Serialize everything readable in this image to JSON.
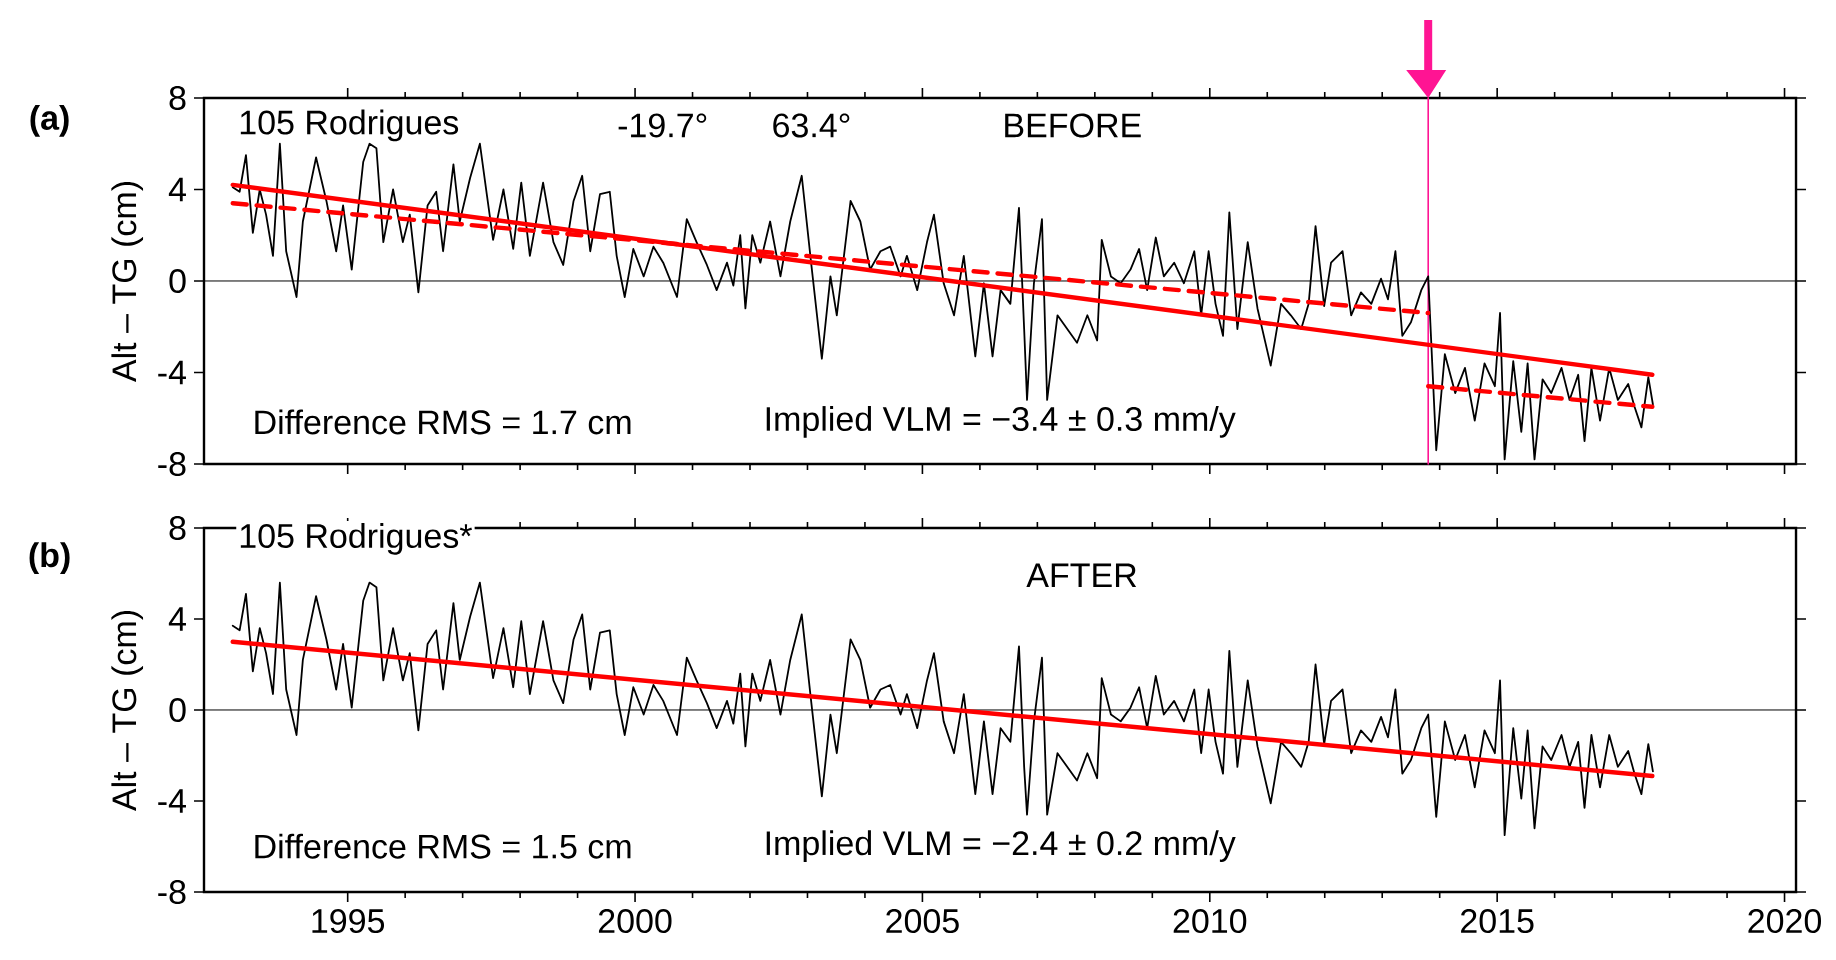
{
  "chart_data": [
    {
      "type": "line",
      "title": "(a)",
      "ylabel": "Alt – TG (cm)",
      "annotations": [
        "105 Rodrigues",
        "-19.7°",
        "63.4°",
        "BEFORE",
        "Difference RMS =  1.7 cm",
        "Implied VLM = −3.4 ± 0.3 mm/y"
      ],
      "x": [
        1993.0,
        1993.12,
        1993.23,
        1993.35,
        1993.47,
        1993.58,
        1993.7,
        1993.82,
        1993.93,
        1994.11,
        1994.22,
        1994.45,
        1994.63,
        1994.8,
        1994.92,
        1995.07,
        1995.27,
        1995.38,
        1995.5,
        1995.62,
        1995.79,
        1995.96,
        1996.08,
        1996.23,
        1996.39,
        1996.54,
        1996.66,
        1996.84,
        1996.95,
        1997.13,
        1997.3,
        1997.42,
        1997.53,
        1997.71,
        1997.88,
        1998.02,
        1998.17,
        1998.4,
        1998.58,
        1998.75,
        1998.93,
        1999.08,
        1999.22,
        1999.39,
        1999.56,
        1999.68,
        1999.82,
        1999.97,
        2000.15,
        2000.32,
        2000.49,
        2000.73,
        2000.9,
        2001.07,
        2001.25,
        2001.42,
        2001.6,
        2001.71,
        2001.83,
        2001.92,
        2002.04,
        2002.18,
        2002.35,
        2002.53,
        2002.7,
        2002.9,
        2003.05,
        2003.25,
        2003.4,
        2003.51,
        2003.75,
        2003.92,
        2004.09,
        2004.27,
        2004.44,
        2004.62,
        2004.73,
        2004.91,
        2005.08,
        2005.2,
        2005.37,
        2005.55,
        2005.72,
        2005.92,
        2006.07,
        2006.22,
        2006.36,
        2006.53,
        2006.68,
        2006.77,
        2006.82,
        2006.94,
        2007.08,
        2007.17,
        2007.35,
        2007.52,
        2007.69,
        2007.87,
        2008.04,
        2008.12,
        2008.28,
        2008.45,
        2008.62,
        2008.77,
        2008.91,
        2009.06,
        2009.2,
        2009.38,
        2009.55,
        2009.73,
        2009.85,
        2009.98,
        2010.1,
        2010.23,
        2010.34,
        2010.48,
        2010.66,
        2010.83,
        2011.06,
        2011.24,
        2011.41,
        2011.59,
        2011.72,
        2011.84,
        2011.99,
        2012.11,
        2012.31,
        2012.46,
        2012.63,
        2012.81,
        2012.98,
        2013.1,
        2013.23,
        2013.35,
        2013.5,
        2013.68,
        2013.8,
        2013.94,
        2014.09,
        2014.27,
        2014.44,
        2014.61,
        2014.78,
        2014.96,
        2015.05,
        2015.13,
        2015.28,
        2015.42,
        2015.53,
        2015.65,
        2015.79,
        2015.94,
        2016.12,
        2016.26,
        2016.41,
        2016.52,
        2016.64,
        2016.79,
        2016.95,
        2017.1,
        2017.28,
        2017.39,
        2017.51,
        2017.63,
        2017.71
      ],
      "series": [
        {
          "color": "#000000",
          "line_style": "solid",
          "values": [
            4.1,
            3.9,
            5.5,
            2.1,
            4.0,
            2.9,
            1.1,
            6.0,
            1.3,
            -0.7,
            2.6,
            5.4,
            3.5,
            1.3,
            3.3,
            0.5,
            5.2,
            6.0,
            5.8,
            1.7,
            4.0,
            1.7,
            2.9,
            -0.5,
            3.3,
            3.9,
            1.3,
            5.1,
            2.6,
            4.5,
            6.0,
            3.8,
            1.8,
            4.0,
            1.4,
            4.3,
            1.1,
            4.3,
            1.7,
            0.7,
            3.5,
            4.6,
            1.3,
            3.8,
            3.9,
            1.1,
            -0.7,
            1.4,
            0.2,
            1.5,
            0.8,
            -0.7,
            2.7,
            1.7,
            0.7,
            -0.4,
            0.8,
            -0.2,
            2.0,
            -1.2,
            2.0,
            0.8,
            2.6,
            0.2,
            2.6,
            4.6,
            1.1,
            -3.4,
            0.2,
            -1.5,
            3.5,
            2.6,
            0.5,
            1.3,
            1.5,
            0.2,
            1.1,
            -0.4,
            1.7,
            2.9,
            -0.1,
            -1.5,
            1.1,
            -3.3,
            -0.1,
            -3.3,
            -0.4,
            -1.0,
            3.2,
            -2.1,
            -5.2,
            -0.1,
            2.7,
            -5.2,
            -1.5,
            -2.1,
            -2.7,
            -1.5,
            -2.6,
            1.8,
            0.2,
            -0.1,
            0.5,
            1.4,
            -0.4,
            1.9,
            0.2,
            0.8,
            -0.1,
            1.3,
            -1.5,
            1.3,
            -1.0,
            -2.4,
            3.0,
            -2.1,
            1.7,
            -1.2,
            -3.7,
            -1.0,
            -1.5,
            -2.1,
            -1.0,
            2.4,
            -1.1,
            0.8,
            1.3,
            -1.5,
            -0.5,
            -1.0,
            0.1,
            -0.8,
            1.3,
            -2.4,
            -1.8,
            -0.4,
            0.2,
            -7.4,
            -3.2,
            -4.9,
            -3.8,
            -6.1,
            -3.6,
            -4.6,
            -1.4,
            -7.8,
            -3.5,
            -6.6,
            -3.6,
            -7.8,
            -4.3,
            -4.9,
            -3.8,
            -5.2,
            -4.1,
            -7.0,
            -3.8,
            -6.1,
            -3.8,
            -5.2,
            -4.5,
            -5.5,
            -6.4,
            -4.2,
            -5.4
          ]
        },
        {
          "color": "#ff0000",
          "line_style": "solid",
          "x": [
            1993.0,
            2017.7
          ],
          "values": [
            4.2,
            -4.1
          ]
        },
        {
          "color": "#ff0000",
          "line_style": "dashed",
          "x": [
            1993.0,
            2013.8
          ],
          "values": [
            3.4,
            -1.4
          ]
        },
        {
          "color": "#ff0000",
          "line_style": "dashed",
          "x": [
            2013.8,
            2017.7
          ],
          "values": [
            -4.6,
            -5.5
          ]
        }
      ],
      "xlim": [
        1992.5,
        2020.2
      ],
      "ylim": [
        -8,
        8
      ],
      "xticks": [
        1995,
        2000,
        2005,
        2010,
        2015,
        2020
      ],
      "yticks": [
        -8,
        -4,
        0,
        4,
        8
      ],
      "tick_labels": "y",
      "ref_lines": [
        {
          "axis": "y",
          "value": 0,
          "color": "#000000"
        },
        {
          "axis": "x",
          "value": 2013.8,
          "color": "#ff1493"
        }
      ]
    },
    {
      "type": "line",
      "title": "(b)",
      "ylabel": "Alt – TG (cm)",
      "annotations": [
        "105 Rodrigues*",
        "AFTER",
        "Difference RMS =  1.5 cm",
        "Implied VLM = −2.4 ± 0.2 mm/y"
      ],
      "x": [
        1993.0,
        1993.12,
        1993.23,
        1993.35,
        1993.47,
        1993.58,
        1993.7,
        1993.82,
        1993.93,
        1994.11,
        1994.22,
        1994.45,
        1994.63,
        1994.8,
        1994.92,
        1995.07,
        1995.27,
        1995.38,
        1995.5,
        1995.62,
        1995.79,
        1995.96,
        1996.08,
        1996.23,
        1996.39,
        1996.54,
        1996.66,
        1996.84,
        1996.95,
        1997.13,
        1997.3,
        1997.42,
        1997.53,
        1997.71,
        1997.88,
        1998.02,
        1998.17,
        1998.4,
        1998.58,
        1998.75,
        1998.93,
        1999.08,
        1999.22,
        1999.39,
        1999.56,
        1999.68,
        1999.82,
        1999.97,
        2000.15,
        2000.32,
        2000.49,
        2000.73,
        2000.9,
        2001.07,
        2001.25,
        2001.42,
        2001.6,
        2001.71,
        2001.83,
        2001.92,
        2002.04,
        2002.18,
        2002.35,
        2002.53,
        2002.7,
        2002.9,
        2003.05,
        2003.25,
        2003.4,
        2003.51,
        2003.75,
        2003.92,
        2004.09,
        2004.27,
        2004.44,
        2004.62,
        2004.73,
        2004.91,
        2005.08,
        2005.2,
        2005.37,
        2005.55,
        2005.72,
        2005.92,
        2006.07,
        2006.22,
        2006.36,
        2006.53,
        2006.68,
        2006.77,
        2006.82,
        2006.94,
        2007.08,
        2007.17,
        2007.35,
        2007.52,
        2007.69,
        2007.87,
        2008.04,
        2008.12,
        2008.28,
        2008.45,
        2008.62,
        2008.77,
        2008.91,
        2009.06,
        2009.2,
        2009.38,
        2009.55,
        2009.73,
        2009.85,
        2009.98,
        2010.1,
        2010.23,
        2010.34,
        2010.48,
        2010.66,
        2010.83,
        2011.06,
        2011.24,
        2011.41,
        2011.59,
        2011.72,
        2011.84,
        2011.99,
        2012.11,
        2012.31,
        2012.46,
        2012.63,
        2012.81,
        2012.98,
        2013.1,
        2013.23,
        2013.35,
        2013.5,
        2013.68,
        2013.8,
        2013.94,
        2014.09,
        2014.27,
        2014.44,
        2014.61,
        2014.78,
        2014.96,
        2015.05,
        2015.13,
        2015.28,
        2015.42,
        2015.53,
        2015.65,
        2015.79,
        2015.94,
        2016.12,
        2016.26,
        2016.41,
        2016.52,
        2016.64,
        2016.79,
        2016.95,
        2017.1,
        2017.28,
        2017.39,
        2017.51,
        2017.63,
        2017.71
      ],
      "series": [
        {
          "color": "#000000",
          "line_style": "solid",
          "values": [
            3.7,
            3.5,
            5.1,
            1.7,
            3.6,
            2.5,
            0.7,
            5.6,
            0.9,
            -1.1,
            2.2,
            5.0,
            3.1,
            0.9,
            2.9,
            0.1,
            4.8,
            5.6,
            5.4,
            1.3,
            3.6,
            1.3,
            2.5,
            -0.9,
            2.9,
            3.5,
            0.9,
            4.7,
            2.2,
            4.1,
            5.6,
            3.4,
            1.4,
            3.6,
            1.0,
            3.9,
            0.7,
            3.9,
            1.3,
            0.3,
            3.1,
            4.2,
            0.9,
            3.4,
            3.5,
            0.7,
            -1.1,
            1.0,
            -0.2,
            1.1,
            0.4,
            -1.1,
            2.3,
            1.3,
            0.3,
            -0.8,
            0.4,
            -0.6,
            1.6,
            -1.6,
            1.6,
            0.4,
            2.2,
            -0.2,
            2.2,
            4.2,
            0.7,
            -3.8,
            -0.2,
            -1.9,
            3.1,
            2.2,
            0.1,
            0.9,
            1.1,
            -0.2,
            0.7,
            -0.8,
            1.3,
            2.5,
            -0.5,
            -1.9,
            0.7,
            -3.7,
            -0.5,
            -3.7,
            -0.8,
            -1.4,
            2.8,
            -2.5,
            -4.6,
            -0.5,
            2.3,
            -4.6,
            -1.9,
            -2.5,
            -3.1,
            -1.9,
            -3.0,
            1.4,
            -0.2,
            -0.5,
            0.1,
            1.0,
            -0.8,
            1.5,
            -0.2,
            0.4,
            -0.5,
            0.9,
            -1.9,
            0.9,
            -1.4,
            -2.8,
            2.6,
            -2.5,
            1.3,
            -1.6,
            -4.1,
            -1.4,
            -1.9,
            -2.5,
            -1.4,
            2.0,
            -1.5,
            0.4,
            0.9,
            -1.9,
            -0.9,
            -1.4,
            -0.3,
            -1.2,
            0.9,
            -2.8,
            -2.2,
            -0.8,
            -0.2,
            -4.7,
            -0.5,
            -2.2,
            -1.1,
            -3.4,
            -0.9,
            -1.9,
            1.3,
            -5.5,
            -0.8,
            -3.9,
            -0.9,
            -5.2,
            -1.6,
            -2.2,
            -1.1,
            -2.5,
            -1.4,
            -4.3,
            -1.1,
            -3.4,
            -1.1,
            -2.5,
            -1.8,
            -2.8,
            -3.7,
            -1.5,
            -2.7
          ]
        },
        {
          "color": "#ff0000",
          "line_style": "solid",
          "x": [
            1993.0,
            2017.7
          ],
          "values": [
            3.0,
            -2.9
          ]
        }
      ],
      "xlim": [
        1992.5,
        2020.2
      ],
      "ylim": [
        -8,
        8
      ],
      "xticks": [
        1995,
        2000,
        2005,
        2010,
        2015,
        2020
      ],
      "yticks": [
        -8,
        -4,
        0,
        4,
        8
      ],
      "ref_lines": [
        {
          "axis": "y",
          "value": 0,
          "color": "#000000"
        }
      ]
    }
  ]
}
